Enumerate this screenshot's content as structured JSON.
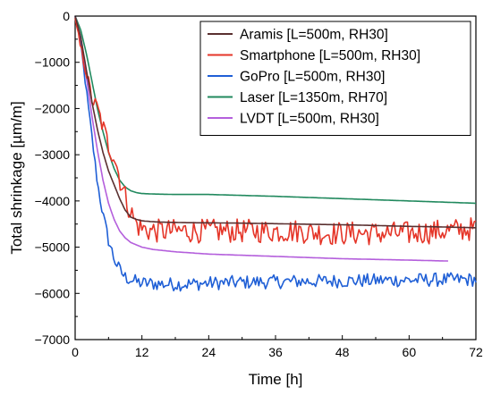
{
  "chart_data": {
    "type": "line",
    "title": "",
    "xlabel": "Time [h]",
    "ylabel": "Total shrinkage [µm/m]",
    "xlim": [
      0,
      72
    ],
    "ylim": [
      -7000,
      0
    ],
    "xticks": [
      0,
      12,
      24,
      36,
      48,
      60,
      72
    ],
    "yticks": [
      0,
      -1000,
      -2000,
      -3000,
      -4000,
      -5000,
      -6000,
      -7000
    ],
    "xtick_labels": [
      "0",
      "12",
      "24",
      "36",
      "48",
      "60",
      "72"
    ],
    "ytick_labels": [
      "0",
      "−1000",
      "−2000",
      "−3000",
      "−4000",
      "−5000",
      "−6000",
      "−7000"
    ],
    "grid": false,
    "legend_position": "top-right",
    "series": [
      {
        "name": "Aramis [L=500m, RH30]",
        "color": "#5a3030",
        "noise": 0,
        "x": [
          0,
          1,
          2,
          3,
          4,
          5,
          6,
          7,
          8,
          9,
          10,
          11,
          12,
          14,
          16,
          20,
          30,
          40,
          50,
          60,
          65,
          72
        ],
        "y": [
          0,
          -450,
          -1150,
          -1850,
          -2450,
          -2950,
          -3350,
          -3650,
          -3950,
          -4200,
          -4350,
          -4400,
          -4430,
          -4450,
          -4460,
          -4470,
          -4480,
          -4500,
          -4520,
          -4550,
          -4560,
          -4580
        ]
      },
      {
        "name": "Smartphone [L=500m, RH30]",
        "color": "#e53528",
        "noise": 260,
        "x": [
          0,
          1,
          2,
          3,
          4,
          5,
          6,
          7,
          8,
          9,
          10,
          11,
          12,
          14,
          20,
          30,
          40,
          45,
          50,
          55,
          60,
          66,
          72
        ],
        "y": [
          -100,
          -700,
          -1200,
          -1800,
          -2000,
          -2400,
          -2800,
          -3000,
          -3500,
          -3900,
          -4250,
          -4500,
          -4600,
          -4650,
          -4650,
          -4650,
          -4650,
          -4700,
          -4700,
          -4700,
          -4700,
          -4650,
          -4600
        ]
      },
      {
        "name": "GoPro [L=500m, RH30]",
        "color": "#1f5fd6",
        "noise": 150,
        "x": [
          0,
          1,
          2,
          3,
          4,
          5,
          6,
          7,
          8,
          9,
          10,
          11,
          12,
          16,
          20,
          24,
          30,
          36,
          40,
          48,
          60,
          72
        ],
        "y": [
          0,
          -600,
          -1600,
          -2600,
          -3600,
          -4300,
          -4850,
          -5250,
          -5500,
          -5650,
          -5700,
          -5750,
          -5780,
          -5800,
          -5800,
          -5780,
          -5760,
          -5750,
          -5740,
          -5730,
          -5710,
          -5700
        ]
      },
      {
        "name": "Laser [L=1350m, RH70]",
        "color": "#21895e",
        "noise": 0,
        "x": [
          0,
          1,
          2,
          3,
          4,
          5,
          6,
          7,
          8,
          9,
          10,
          11,
          12,
          14,
          18,
          24,
          36,
          48,
          60,
          72
        ],
        "y": [
          0,
          -300,
          -800,
          -1400,
          -2000,
          -2500,
          -2950,
          -3300,
          -3550,
          -3700,
          -3780,
          -3820,
          -3840,
          -3850,
          -3860,
          -3860,
          -3900,
          -3950,
          -4000,
          -4050
        ]
      },
      {
        "name": "LVDT [L=500m, RH30]",
        "color": "#b45fdc",
        "noise": 0,
        "x": [
          0,
          1,
          2,
          3,
          4,
          5,
          6,
          7,
          8,
          9,
          10,
          11,
          12,
          14,
          18,
          24,
          36,
          48,
          60,
          67
        ],
        "y": [
          0,
          -450,
          -1300,
          -2150,
          -2900,
          -3550,
          -4050,
          -4400,
          -4650,
          -4800,
          -4900,
          -4950,
          -5000,
          -5050,
          -5100,
          -5150,
          -5200,
          -5250,
          -5280,
          -5300
        ]
      }
    ]
  }
}
